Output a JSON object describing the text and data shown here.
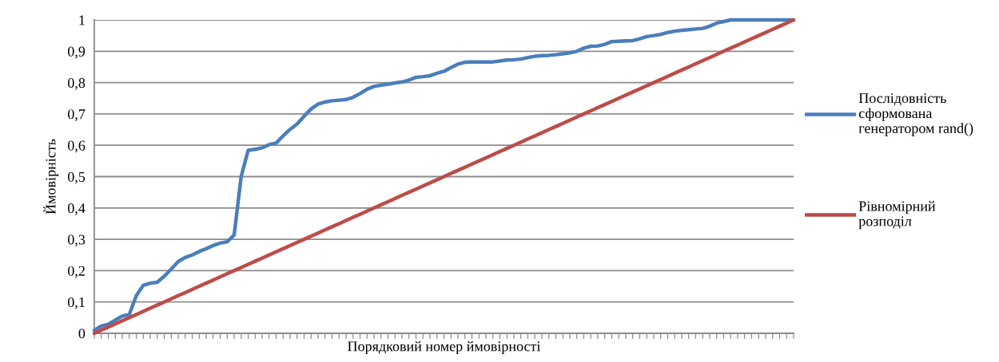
{
  "chart_data": {
    "type": "line",
    "xlabel": "Порядковий номер ймовірності",
    "ylabel": "Ймовірність",
    "categories": [
      null,
      null,
      null,
      null,
      null,
      null,
      null,
      null,
      null,
      null,
      null,
      null,
      null,
      null,
      null,
      null,
      null,
      null,
      null,
      null,
      null,
      null,
      null,
      null,
      null,
      null,
      null,
      null,
      null,
      null,
      null,
      null,
      null,
      null,
      null,
      null,
      null,
      null,
      null,
      null,
      null,
      null,
      null,
      null,
      null,
      null,
      null,
      null,
      null,
      null,
      null,
      null,
      null,
      null,
      null,
      null,
      null,
      null,
      null,
      null,
      null,
      null,
      null,
      null,
      null,
      null,
      null,
      null,
      null,
      null,
      null,
      null,
      null,
      null,
      null,
      null,
      null,
      null,
      null,
      null,
      null,
      null,
      null,
      null,
      null,
      null,
      null,
      null,
      null,
      null,
      null,
      null,
      null,
      null,
      null,
      null,
      null,
      null,
      null,
      null,
      null
    ],
    "series": [
      {
        "name": "Послідовність\nсформована\nгенератором rand()",
        "color": "#4a7ebb",
        "values": [
          0.01,
          0.023,
          0.029,
          0.042,
          0.055,
          0.06,
          0.12,
          0.153,
          0.16,
          0.163,
          0.182,
          0.205,
          0.229,
          0.242,
          0.25,
          0.261,
          0.27,
          0.28,
          0.288,
          0.292,
          0.314,
          0.5,
          0.584,
          0.587,
          0.592,
          0.602,
          0.607,
          0.63,
          0.651,
          0.668,
          0.693,
          0.716,
          0.731,
          0.738,
          0.742,
          0.744,
          0.746,
          0.753,
          0.765,
          0.779,
          0.788,
          0.792,
          0.795,
          0.799,
          0.802,
          0.808,
          0.817,
          0.819,
          0.822,
          0.83,
          0.836,
          0.848,
          0.859,
          0.865,
          0.866,
          0.866,
          0.866,
          0.866,
          0.869,
          0.872,
          0.873,
          0.875,
          0.88,
          0.884,
          0.886,
          0.887,
          0.889,
          0.892,
          0.895,
          0.9,
          0.91,
          0.916,
          0.917,
          0.922,
          0.931,
          0.932,
          0.933,
          0.934,
          0.94,
          0.947,
          0.95,
          0.954,
          0.96,
          0.964,
          0.967,
          0.969,
          0.971,
          0.973,
          0.98,
          0.99,
          0.995,
          1,
          1,
          1,
          1,
          1,
          1,
          1,
          1,
          1,
          1
        ]
      },
      {
        "name": "Рівномірний\nрозподіл",
        "color": "#be4b48",
        "values": [
          0,
          0.01,
          0.02,
          0.03,
          0.04,
          0.05,
          0.06,
          0.07,
          0.08,
          0.09,
          0.1,
          0.11,
          0.12,
          0.13,
          0.14,
          0.15,
          0.16,
          0.17,
          0.18,
          0.19,
          0.2,
          0.21,
          0.22,
          0.23,
          0.24,
          0.25,
          0.26,
          0.27,
          0.28,
          0.29,
          0.3,
          0.31,
          0.32,
          0.33,
          0.34,
          0.35,
          0.36,
          0.37,
          0.38,
          0.39,
          0.4,
          0.41,
          0.42,
          0.43,
          0.44,
          0.45,
          0.46,
          0.47,
          0.48,
          0.49,
          0.5,
          0.51,
          0.52,
          0.53,
          0.54,
          0.55,
          0.56,
          0.57,
          0.58,
          0.59,
          0.6,
          0.61,
          0.62,
          0.63,
          0.64,
          0.65,
          0.66,
          0.67,
          0.68,
          0.69,
          0.7,
          0.71,
          0.72,
          0.73,
          0.74,
          0.75,
          0.76,
          0.77,
          0.78,
          0.79,
          0.8,
          0.81,
          0.82,
          0.83,
          0.84,
          0.85,
          0.86,
          0.87,
          0.88,
          0.89,
          0.9,
          0.91,
          0.92,
          0.93,
          0.94,
          0.95,
          0.96,
          0.97,
          0.98,
          0.99,
          1
        ]
      }
    ],
    "ylim": [
      0,
      1
    ],
    "yticks": [
      0,
      {
        "value": 0.1,
        "label": "0,1"
      },
      {
        "value": 0.2,
        "label": "0,2"
      },
      {
        "value": 0.3,
        "label": "0,3"
      },
      {
        "value": 0.4,
        "label": "0,4"
      },
      {
        "value": 0.5,
        "label": "0,5"
      },
      {
        "value": 0.6,
        "label": "0,6"
      },
      {
        "value": 0.7,
        "label": "0,7"
      },
      {
        "value": 0.8,
        "label": "0,8"
      },
      {
        "value": 0.9,
        "label": "0,9"
      },
      1
    ],
    "grid": "y",
    "legend": "right",
    "tick_labels": "y",
    "marker": "none",
    "line_style": "solid"
  }
}
